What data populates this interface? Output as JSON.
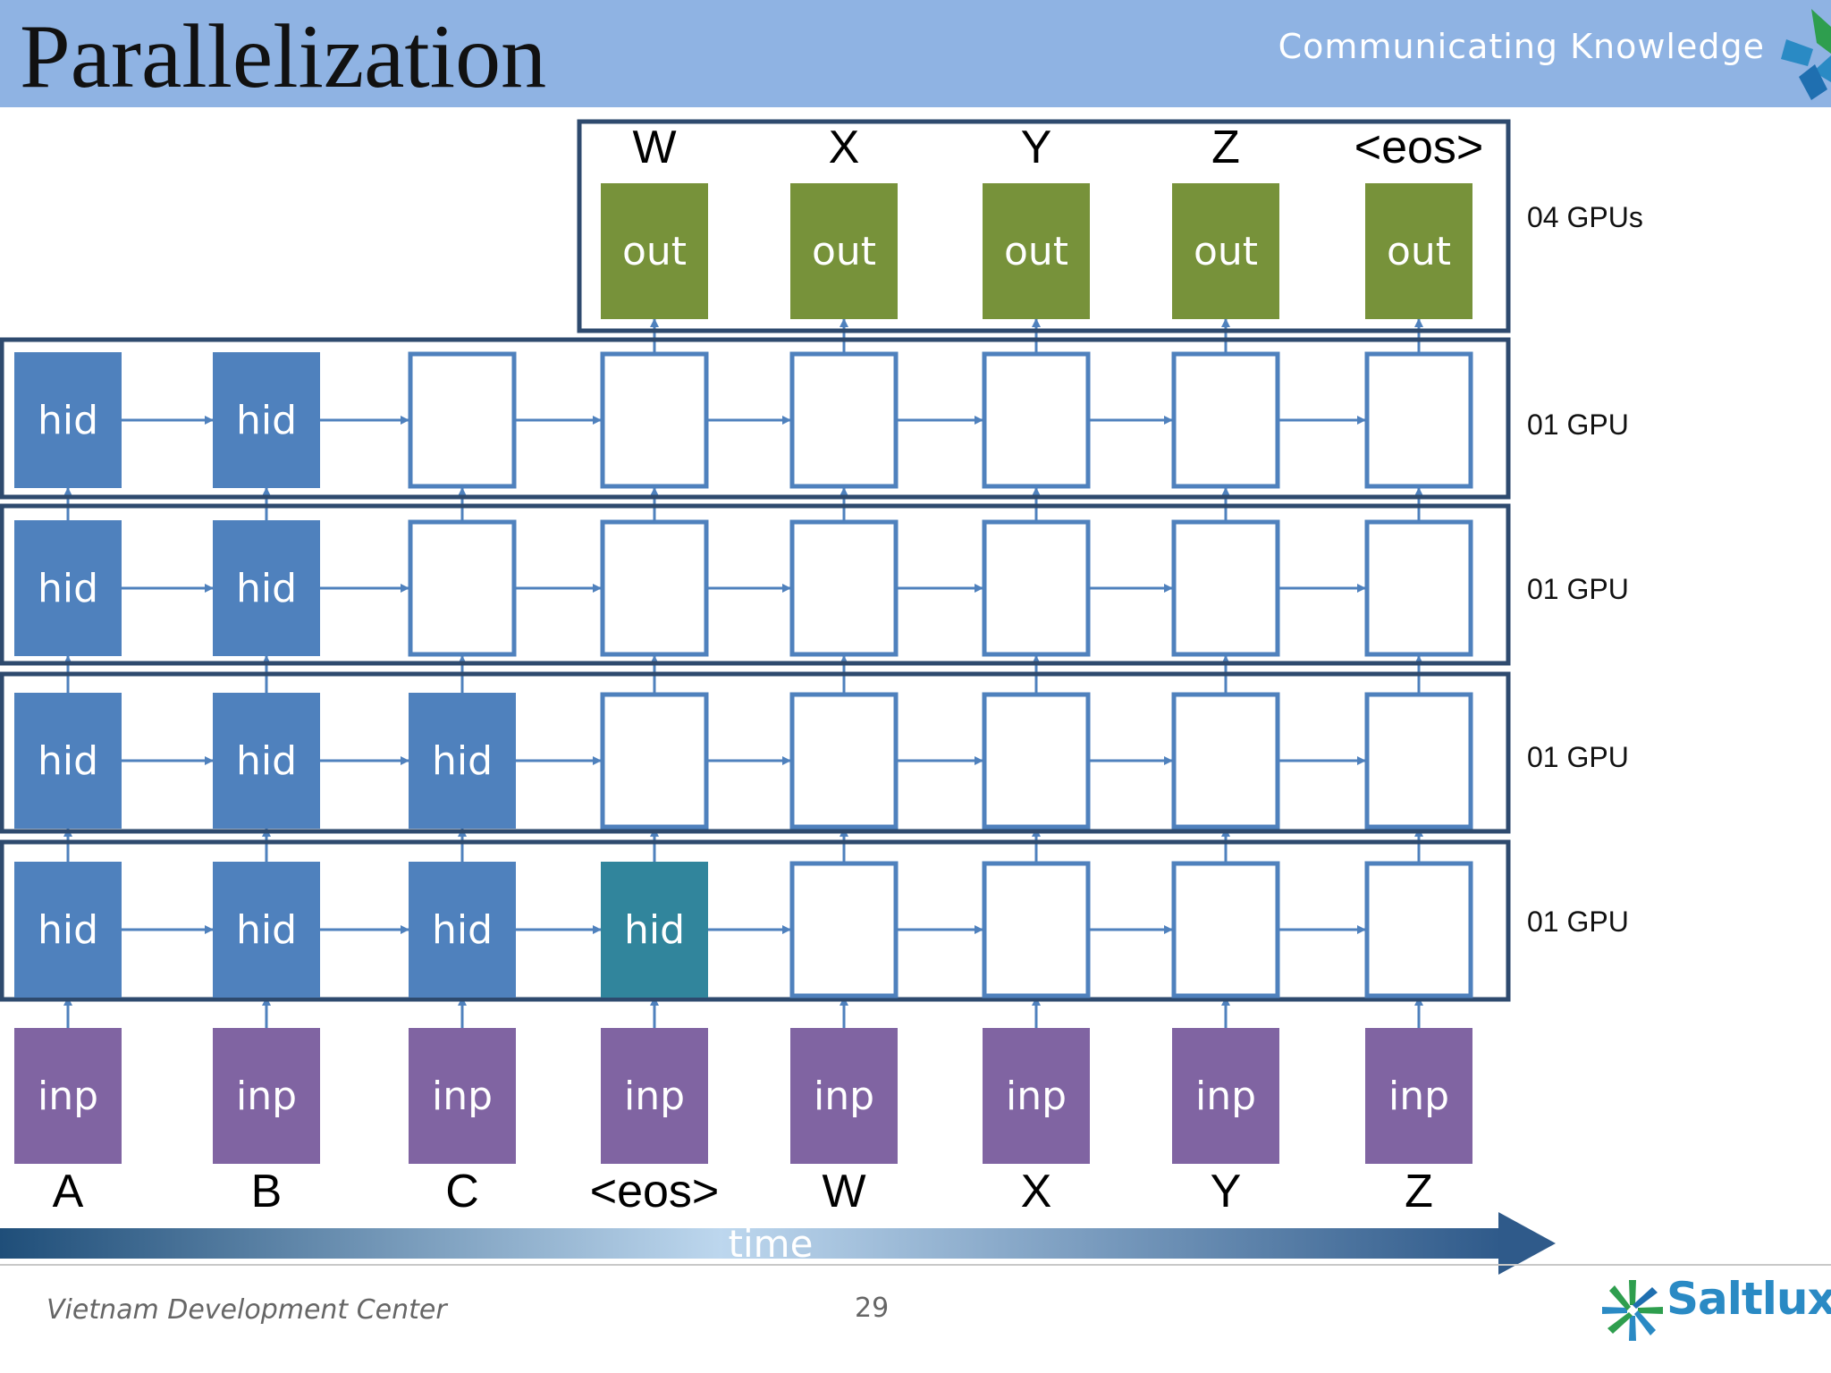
{
  "slide": {
    "title": "Parallelization",
    "tagline": "Communicating Knowledge",
    "footer_left": "Vietnam Development Center",
    "page_number": "29",
    "brand": "Saltlux"
  },
  "diagram": {
    "output_tokens": [
      "W",
      "X",
      "Y",
      "Z",
      "<eos>"
    ],
    "input_tokens": [
      "A",
      "B",
      "C",
      "<eos>",
      "W",
      "X",
      "Y",
      "Z"
    ],
    "cell_labels": {
      "out": "out",
      "hid": "hid",
      "inp": "inp"
    },
    "time_label": "time",
    "gpu_labels": [
      "04 GPUs",
      "01 GPU",
      "01 GPU",
      "01 GPU",
      "01 GPU"
    ],
    "hidden_layers_top_to_bottom": [
      {
        "filled_count": 2
      },
      {
        "filled_count": 2
      },
      {
        "filled_count": 3
      },
      {
        "filled_count": 3,
        "highlight_index": 3
      }
    ],
    "colors": {
      "header": "#8fb3e3",
      "out": "#77923a",
      "hid": "#4f81bd",
      "hid_highlight": "#31859c",
      "inp": "#8064a2",
      "empty_border": "#4f81bd",
      "frame": "#2e4a6e",
      "arrow": "#4f81bd",
      "time_dark": "#1f4e79",
      "time_light": "#bdd7ee"
    }
  }
}
